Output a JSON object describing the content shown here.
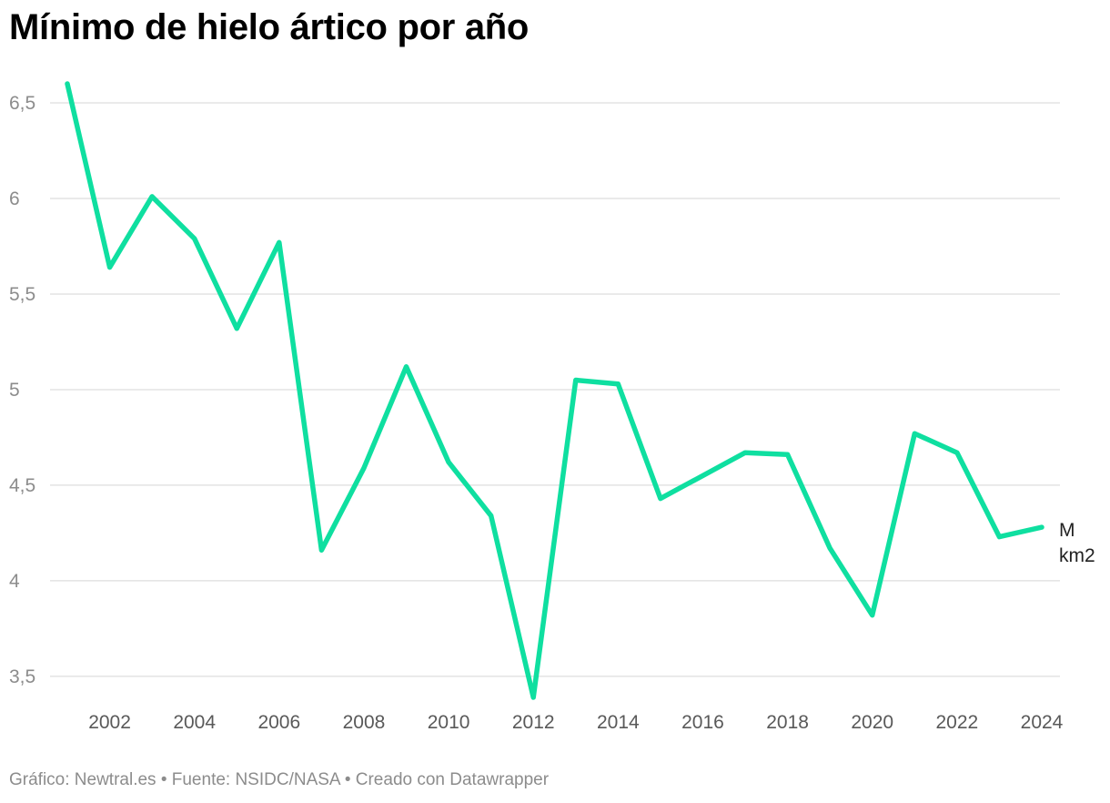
{
  "title": "Mínimo de hielo ártico por año",
  "footer": "Gráfico: Newtral.es • Fuente: NSIDC/NASA • Creado con Datawrapper",
  "chart_data": {
    "type": "line",
    "title": "Mínimo de hielo ártico por año",
    "x": [
      2001,
      2002,
      2003,
      2004,
      2005,
      2006,
      2007,
      2008,
      2009,
      2010,
      2011,
      2012,
      2013,
      2014,
      2015,
      2016,
      2017,
      2018,
      2019,
      2020,
      2021,
      2022,
      2023,
      2024
    ],
    "series": [
      {
        "values": [
          6.6,
          5.64,
          6.01,
          5.79,
          5.32,
          5.77,
          4.16,
          4.59,
          5.12,
          4.62,
          4.34,
          3.39,
          5.05,
          5.03,
          4.43,
          4.55,
          4.67,
          4.66,
          4.17,
          3.82,
          4.77,
          4.67,
          4.23,
          4.28
        ],
        "color": "#0fdfa0"
      }
    ],
    "series_label": [
      "M",
      "km2"
    ],
    "y_ticks": [
      3.5,
      4,
      4.5,
      5,
      5.5,
      6,
      6.5
    ],
    "y_tick_labels": [
      "3,5",
      "4",
      "4,5",
      "5",
      "5,5",
      "6",
      "6,5"
    ],
    "x_ticks": [
      2002,
      2004,
      2006,
      2008,
      2010,
      2012,
      2014,
      2016,
      2018,
      2020,
      2022,
      2024
    ],
    "x_tick_labels": [
      "2002",
      "2004",
      "2006",
      "2008",
      "2010",
      "2012",
      "2014",
      "2016",
      "2018",
      "2020",
      "2022",
      "2024"
    ],
    "xlim": [
      2001,
      2024
    ],
    "ylim": [
      3.39,
      6.6
    ],
    "grid": true,
    "gridColor": "#e3e3e3"
  }
}
